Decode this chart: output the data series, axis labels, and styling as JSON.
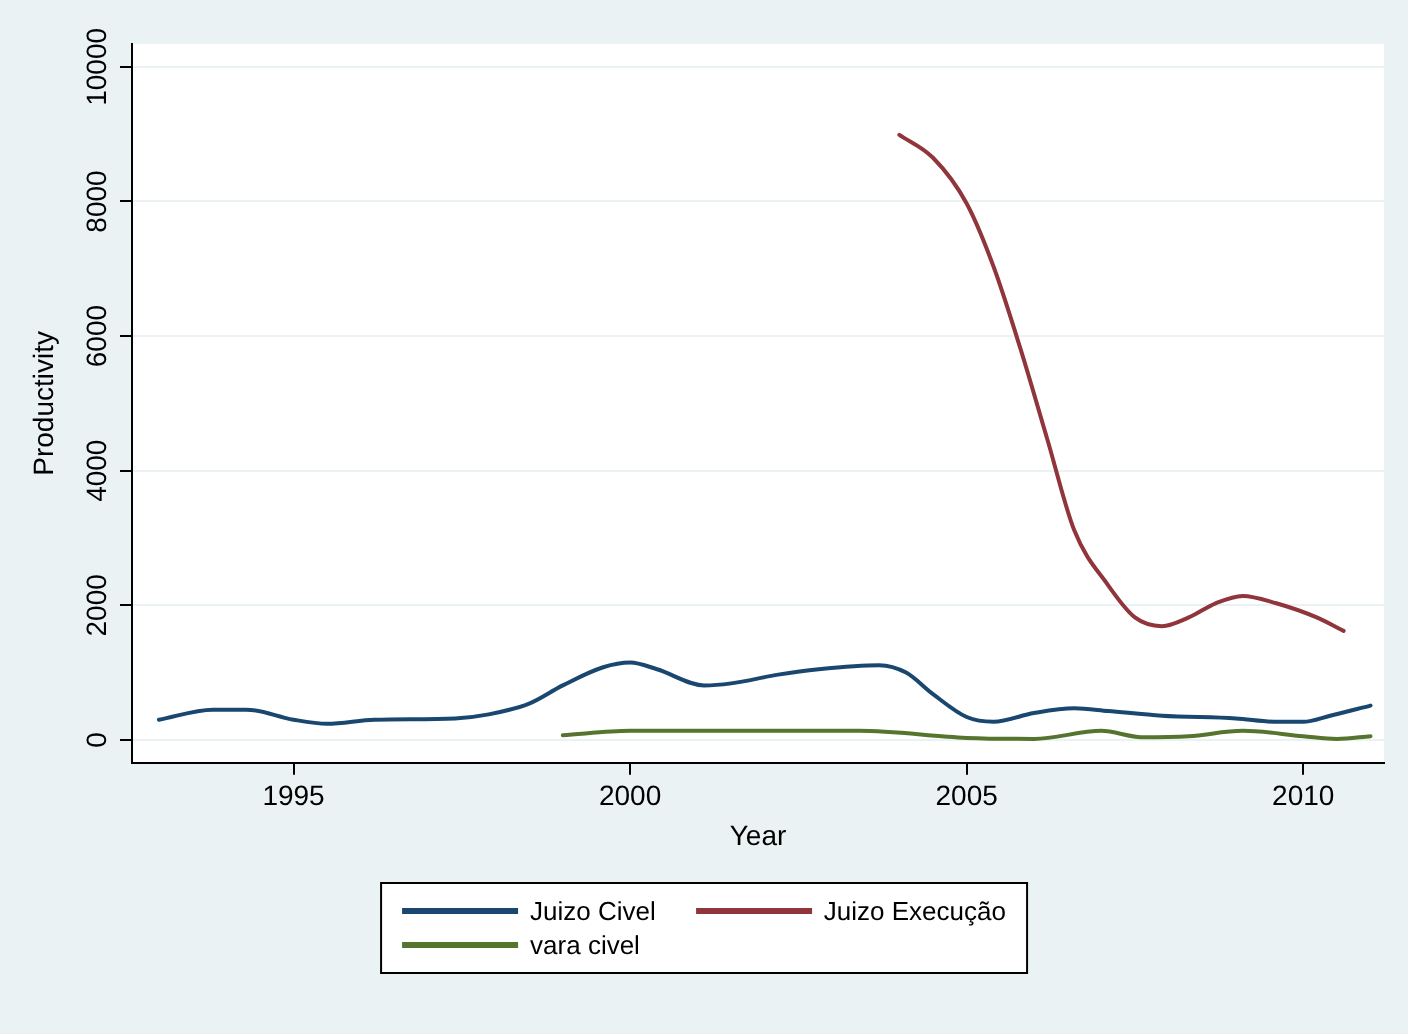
{
  "chart_data": {
    "type": "line",
    "xlabel": "Year",
    "ylabel": "Productivity",
    "xlim": [
      1992.6,
      2011.2
    ],
    "xticks": [
      1995,
      2000,
      2005,
      2010
    ],
    "ylim": [
      -340,
      10340
    ],
    "yticks": [
      0,
      2000,
      4000,
      6000,
      8000,
      10000
    ],
    "grid": "y",
    "legend": "bottom",
    "marker": "none",
    "line_style": "solid",
    "series": [
      {
        "name": "Juizo Civel",
        "color": "#1a476f",
        "x": [
          1993,
          1993.8,
          1994.3,
          1995,
          1995.5,
          1996.2,
          1997.4,
          1997.9,
          1998.5,
          1999,
          1999.6,
          2000,
          2000.4,
          2001.1,
          2001.5,
          2002.2,
          2002.8,
          2003.7,
          2004.1,
          2004.5,
          2005,
          2005.4,
          2006,
          2006.6,
          2007.1,
          2007.9,
          2009,
          2009.6,
          2010,
          2010.4,
          2011
        ],
        "values": [
          300,
          450,
          450,
          300,
          240,
          300,
          320,
          380,
          540,
          810,
          1080,
          1150,
          1050,
          810,
          840,
          970,
          1050,
          1110,
          1000,
          680,
          340,
          270,
          400,
          470,
          430,
          360,
          320,
          270,
          270,
          360,
          510
        ]
      },
      {
        "name": "Juizo Execução",
        "color": "#90353b",
        "x": [
          2004,
          2004.5,
          2005,
          2005.4,
          2005.8,
          2006.2,
          2006.6,
          2007.1,
          2007.5,
          2007.9,
          2008.3,
          2008.7,
          2009.1,
          2009.6,
          2010.2,
          2010.6
        ],
        "values": [
          8990,
          8650,
          7970,
          7030,
          5810,
          4460,
          3110,
          2300,
          1820,
          1690,
          1820,
          2030,
          2140,
          2030,
          1820,
          1620
        ]
      },
      {
        "name": "vara civel",
        "color": "#55752f",
        "x": [
          1999,
          2000,
          2003.4,
          2005,
          2006,
          2007,
          2007.6,
          2008.3,
          2009.1,
          2010,
          2010.5,
          2011
        ],
        "values": [
          70,
          135,
          135,
          30,
          15,
          135,
          40,
          55,
          135,
          55,
          15,
          55
        ]
      }
    ]
  }
}
